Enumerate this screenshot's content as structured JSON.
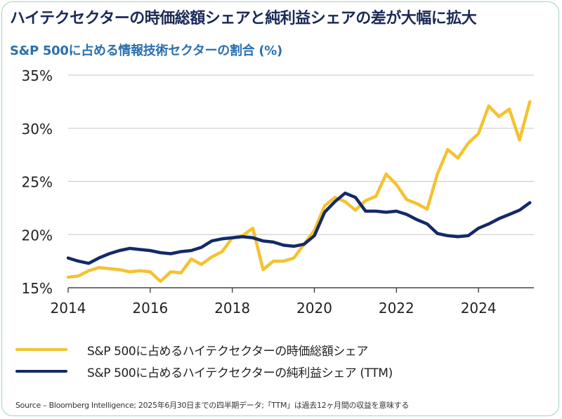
{
  "title": "ハイテクセクターの時価総額シェアと純利益シェアの差が大幅に拡大",
  "subtitle": "S&P 500に占める情報技術セクターの割合 (%)",
  "source": "Source – Bloomberg Intelligence; 2025年6月30日までの四半期データ;「TTM」は過去12ヶ月間の収益を意味する",
  "colors": {
    "market_cap": "#f5c22f",
    "net_income": "#132a66",
    "grid": "#d0d0d0",
    "axis": "#444444"
  },
  "chart_data": {
    "type": "line",
    "title": "ハイテクセクターの時価総額シェアと純利益シェアの差が大幅に拡大",
    "subtitle": "S&P 500に占める情報技術セクターの割合 (%)",
    "xlabel": "",
    "ylabel": "",
    "xlim": [
      2014.0,
      2025.35
    ],
    "ylim": [
      15,
      35
    ],
    "xticks": [
      2014,
      2016,
      2018,
      2020,
      2022,
      2024
    ],
    "xtick_labels": [
      "2014",
      "2016",
      "2018",
      "2020",
      "2022",
      "2024"
    ],
    "yticks": [
      15,
      20,
      25,
      30,
      35
    ],
    "ytick_labels": [
      "15%",
      "20%",
      "25%",
      "30%",
      "35%"
    ],
    "grid": "horizontal",
    "legend_position": "bottom",
    "series": [
      {
        "name": "S&P 500に占めるハイテクセクターの時価総額シェア",
        "color": "#f5c22f",
        "x": [
          2014.0,
          2014.25,
          2014.5,
          2014.75,
          2015.0,
          2015.25,
          2015.5,
          2015.75,
          2016.0,
          2016.25,
          2016.5,
          2016.75,
          2017.0,
          2017.25,
          2017.5,
          2017.75,
          2018.0,
          2018.25,
          2018.5,
          2018.75,
          2019.0,
          2019.25,
          2019.5,
          2019.75,
          2020.0,
          2020.25,
          2020.5,
          2020.75,
          2021.0,
          2021.25,
          2021.5,
          2021.75,
          2022.0,
          2022.25,
          2022.5,
          2022.75,
          2023.0,
          2023.25,
          2023.5,
          2023.75,
          2024.0,
          2024.25,
          2024.5,
          2024.75,
          2025.0,
          2025.25
        ],
        "values": [
          16.0,
          16.1,
          16.6,
          16.9,
          16.8,
          16.7,
          16.5,
          16.6,
          16.5,
          15.6,
          16.5,
          16.4,
          17.7,
          17.2,
          17.9,
          18.4,
          19.7,
          19.9,
          20.6,
          16.7,
          17.5,
          17.5,
          17.8,
          19.1,
          20.4,
          22.7,
          23.5,
          23.1,
          22.3,
          23.2,
          23.6,
          25.7,
          24.7,
          23.3,
          22.9,
          22.4,
          25.7,
          28.0,
          27.2,
          28.6,
          29.5,
          32.1,
          31.1,
          31.8,
          28.9,
          32.5
        ]
      },
      {
        "name": "S&P 500に占めるハイテクセクターの純利益シェア (TTM)",
        "color": "#132a66",
        "x": [
          2014.0,
          2014.25,
          2014.5,
          2014.75,
          2015.0,
          2015.25,
          2015.5,
          2015.75,
          2016.0,
          2016.25,
          2016.5,
          2016.75,
          2017.0,
          2017.25,
          2017.5,
          2017.75,
          2018.0,
          2018.25,
          2018.5,
          2018.75,
          2019.0,
          2019.25,
          2019.5,
          2019.75,
          2020.0,
          2020.25,
          2020.5,
          2020.75,
          2021.0,
          2021.25,
          2021.5,
          2021.75,
          2022.0,
          2022.25,
          2022.5,
          2022.75,
          2023.0,
          2023.25,
          2023.5,
          2023.75,
          2024.0,
          2024.25,
          2024.5,
          2024.75,
          2025.0,
          2025.25
        ],
        "values": [
          17.8,
          17.5,
          17.3,
          17.8,
          18.2,
          18.5,
          18.7,
          18.6,
          18.5,
          18.3,
          18.2,
          18.4,
          18.5,
          18.8,
          19.4,
          19.6,
          19.7,
          19.8,
          19.7,
          19.4,
          19.3,
          19.0,
          18.9,
          19.1,
          19.9,
          22.1,
          23.1,
          23.9,
          23.5,
          22.2,
          22.2,
          22.1,
          22.2,
          21.9,
          21.4,
          21.0,
          20.1,
          19.9,
          19.8,
          19.9,
          20.6,
          21.0,
          21.5,
          21.9,
          22.3,
          23.0
        ]
      }
    ]
  }
}
